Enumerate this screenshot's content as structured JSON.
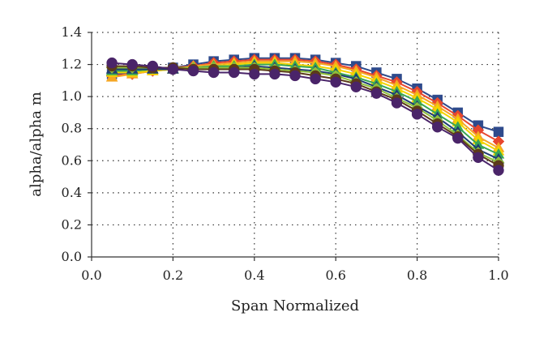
{
  "chart_data": {
    "type": "line",
    "title": "",
    "xlabel": "Span Normalized",
    "ylabel": "alpha/alpha m",
    "xlim": [
      0.0,
      1.0
    ],
    "ylim": [
      0.0,
      1.4
    ],
    "grid": "dotted",
    "legend": "none",
    "x_ticks": [
      "0.0",
      "0.2",
      "0.4",
      "0.6",
      "0.8",
      "1.0"
    ],
    "y_ticks": [
      "0.0",
      "0.2",
      "0.4",
      "0.6",
      "0.8",
      "1.0",
      "1.2",
      "1.4"
    ],
    "x": [
      0.05,
      0.1,
      0.15,
      0.2,
      0.25,
      0.3,
      0.35,
      0.4,
      0.45,
      0.5,
      0.55,
      0.6,
      0.65,
      0.7,
      0.75,
      0.8,
      0.85,
      0.9,
      0.95,
      1.0
    ],
    "series": [
      {
        "color": "#2e4a8c",
        "marker": "square",
        "values": [
          1.14,
          1.15,
          1.17,
          1.18,
          1.2,
          1.22,
          1.23,
          1.24,
          1.24,
          1.24,
          1.23,
          1.21,
          1.19,
          1.15,
          1.11,
          1.05,
          0.98,
          0.9,
          0.82,
          0.78
        ]
      },
      {
        "color": "#e8462e",
        "marker": "diamond",
        "values": [
          1.13,
          1.14,
          1.16,
          1.18,
          1.19,
          1.21,
          1.22,
          1.23,
          1.23,
          1.23,
          1.22,
          1.2,
          1.17,
          1.13,
          1.09,
          1.03,
          0.96,
          0.88,
          0.79,
          0.72
        ]
      },
      {
        "color": "#f5a623",
        "marker": "triangle",
        "values": [
          1.12,
          1.14,
          1.16,
          1.17,
          1.19,
          1.2,
          1.21,
          1.22,
          1.22,
          1.22,
          1.21,
          1.19,
          1.16,
          1.12,
          1.07,
          1.01,
          0.94,
          0.86,
          0.75,
          0.68
        ]
      },
      {
        "color": "#f2d400",
        "marker": "triangle",
        "values": [
          1.15,
          1.15,
          1.16,
          1.17,
          1.18,
          1.19,
          1.2,
          1.21,
          1.21,
          1.2,
          1.19,
          1.17,
          1.14,
          1.1,
          1.05,
          0.99,
          0.92,
          0.84,
          0.73,
          0.66
        ]
      },
      {
        "color": "#3aa655",
        "marker": "triangle",
        "values": [
          1.16,
          1.16,
          1.17,
          1.17,
          1.18,
          1.19,
          1.19,
          1.2,
          1.2,
          1.19,
          1.18,
          1.15,
          1.12,
          1.08,
          1.03,
          0.97,
          0.89,
          0.81,
          0.7,
          0.64
        ]
      },
      {
        "color": "#1f3b73",
        "marker": "triangle",
        "values": [
          1.17,
          1.17,
          1.17,
          1.17,
          1.18,
          1.18,
          1.18,
          1.19,
          1.18,
          1.17,
          1.16,
          1.14,
          1.11,
          1.06,
          1.01,
          0.94,
          0.87,
          0.78,
          0.67,
          0.61
        ]
      },
      {
        "color": "#8fbf3a",
        "marker": "diamond",
        "values": [
          1.18,
          1.18,
          1.18,
          1.18,
          1.18,
          1.18,
          1.18,
          1.18,
          1.17,
          1.16,
          1.15,
          1.13,
          1.09,
          1.05,
          0.99,
          0.93,
          0.85,
          0.76,
          0.65,
          0.59
        ]
      },
      {
        "color": "#5c3a1a",
        "marker": "circle",
        "values": [
          1.19,
          1.19,
          1.18,
          1.18,
          1.17,
          1.17,
          1.17,
          1.17,
          1.16,
          1.15,
          1.13,
          1.11,
          1.08,
          1.03,
          0.98,
          0.91,
          0.83,
          0.75,
          0.64,
          0.57
        ]
      },
      {
        "color": "#4a2469",
        "marker": "circle",
        "values": [
          1.21,
          1.2,
          1.19,
          1.17,
          1.16,
          1.15,
          1.15,
          1.14,
          1.14,
          1.13,
          1.11,
          1.09,
          1.06,
          1.02,
          0.96,
          0.89,
          0.81,
          0.74,
          0.62,
          0.54
        ]
      }
    ]
  }
}
